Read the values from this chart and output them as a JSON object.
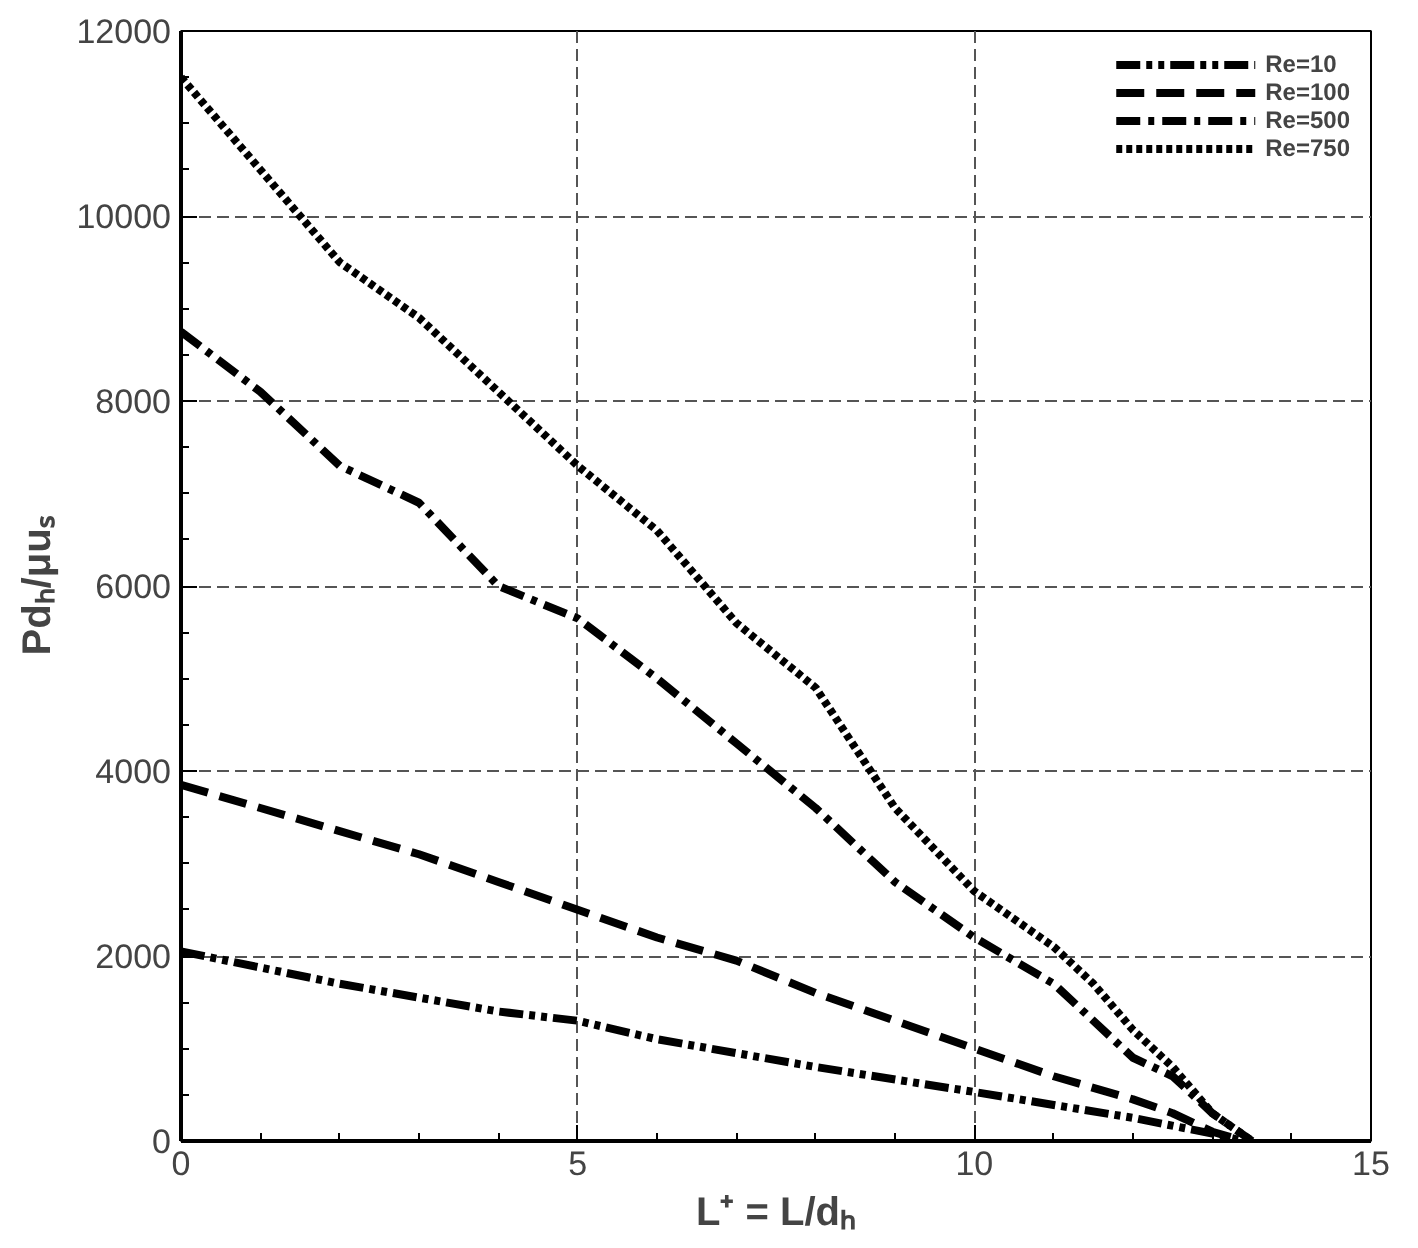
{
  "chart_data": {
    "type": "line",
    "xlabel": "L⁺ = L/dₕ",
    "ylabel": "Pdₕ/μuₛ",
    "xlim": [
      0,
      15
    ],
    "ylim": [
      0,
      12000
    ],
    "xticks": [
      0,
      5,
      10,
      15
    ],
    "yticks": [
      0,
      2000,
      4000,
      6000,
      8000,
      10000,
      12000
    ],
    "grid": true,
    "legend": "top right",
    "marker": "none",
    "series": [
      {
        "name": "Re=10",
        "color": "#000000",
        "line_style": "dashdotdot",
        "x": [
          0,
          2,
          4,
          5,
          6,
          8,
          10,
          12,
          13,
          13.4
        ],
        "values": [
          2050,
          1700,
          1400,
          1300,
          1100,
          800,
          530,
          250,
          80,
          0
        ]
      },
      {
        "name": "Re=100",
        "color": "#000000",
        "line_style": "dashed",
        "x": [
          0,
          1,
          2,
          3,
          4,
          5,
          6,
          7,
          8,
          9,
          10,
          11,
          12,
          12.5,
          13,
          13.4
        ],
        "values": [
          3850,
          3600,
          3350,
          3100,
          2800,
          2500,
          2200,
          1950,
          1600,
          1300,
          1000,
          700,
          450,
          300,
          100,
          0
        ]
      },
      {
        "name": "Re=500",
        "color": "#000000",
        "line_style": "dashdot",
        "x": [
          0,
          1,
          2,
          3,
          4,
          5,
          6,
          7,
          8,
          9,
          10,
          11,
          12,
          12.5,
          13,
          13.5
        ],
        "values": [
          8750,
          8100,
          7300,
          6900,
          6000,
          5650,
          5000,
          4300,
          3600,
          2800,
          2200,
          1700,
          900,
          700,
          300,
          0
        ]
      },
      {
        "name": "Re=750",
        "color": "#000000",
        "line_style": "dotted",
        "x": [
          0,
          1,
          2,
          3,
          4,
          5,
          6,
          7,
          8,
          9,
          10,
          11,
          11.5,
          12,
          12.5,
          13,
          13.5
        ],
        "values": [
          11500,
          10500,
          9500,
          8900,
          8100,
          7300,
          6600,
          5600,
          4900,
          3600,
          2700,
          2100,
          1700,
          1200,
          800,
          300,
          0
        ]
      }
    ]
  }
}
